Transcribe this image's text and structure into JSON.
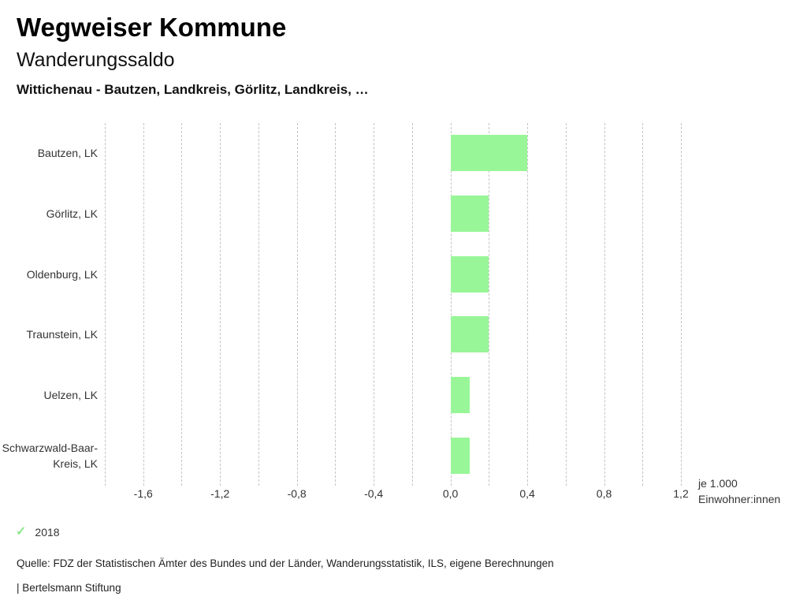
{
  "header": {
    "title": "Wegweiser Kommune",
    "subtitle": "Wanderungssaldo",
    "selection": "Wittichenau - Bautzen, Landkreis, Görlitz, Landkreis, …"
  },
  "chart_data": {
    "type": "bar",
    "orientation": "horizontal",
    "title": "Wanderungssaldo",
    "categories": [
      "Bautzen, LK",
      "Görlitz, LK",
      "Oldenburg, LK",
      "Traunstein, LK",
      "Uelzen, LK",
      "Schwarzwald-Baar-Kreis, LK"
    ],
    "series": [
      {
        "name": "2018",
        "values": [
          0.4,
          0.2,
          0.2,
          0.2,
          0.1,
          0.1
        ]
      }
    ],
    "xlim": [
      -1.8,
      1.2
    ],
    "grid_step": 0.2,
    "grid": "dashed-vertical",
    "legend_position": "bottom-left",
    "ticks": [
      {
        "value": -1.6,
        "label": "-1,6"
      },
      {
        "value": -1.2,
        "label": "-1,2"
      },
      {
        "value": -0.8,
        "label": "-0,8"
      },
      {
        "value": -0.4,
        "label": "-0,4"
      },
      {
        "value": 0.0,
        "label": "0,0"
      },
      {
        "value": 0.4,
        "label": "0,4"
      },
      {
        "value": 0.8,
        "label": "0,8"
      },
      {
        "value": 1.2,
        "label": "1,2"
      }
    ],
    "unit_label_line1": "je 1.000",
    "unit_label_line2": "Einwohner:innen",
    "bar_color": "#98f698",
    "gridline_color": "#c4c4c4"
  },
  "legend": {
    "check_icon": "✓",
    "check_color": "#8ee88e",
    "label": "2018"
  },
  "footer": {
    "source": "Quelle: FDZ der Statistischen Ämter des Bundes und der Länder, Wanderungsstatistik, ILS, eigene Berechnungen",
    "attribution": "| Bertelsmann Stiftung"
  }
}
